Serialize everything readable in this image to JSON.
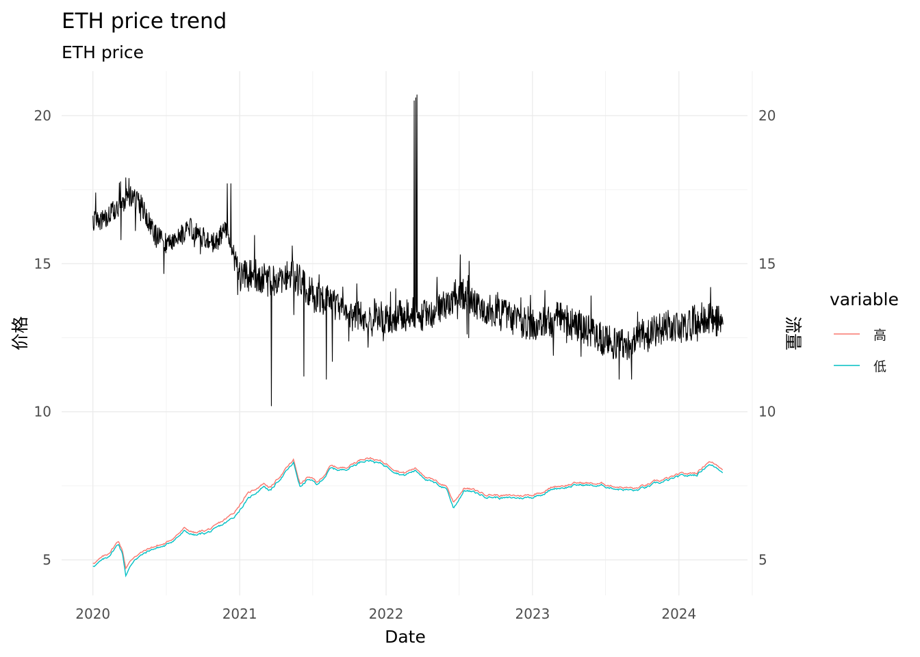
{
  "chart_data": {
    "type": "line",
    "title": "ETH price trend",
    "subtitle": "ETH price",
    "xlabel": "Date",
    "ylabel_left": "价格",
    "ylabel_right": "流量",
    "x_range": [
      "2019-10-15",
      "2024-06-20"
    ],
    "y_range": [
      3.8,
      21.5
    ],
    "x_ticks": [
      "2020-01-01",
      "2021-01-01",
      "2022-01-01",
      "2023-01-01",
      "2024-01-01"
    ],
    "x_tick_labels": [
      "2020",
      "2021",
      "2022",
      "2023",
      "2024"
    ],
    "y_ticks": [
      5,
      10,
      15,
      20
    ],
    "y_tick_labels": [
      "5",
      "10",
      "15",
      "20"
    ],
    "grid": true,
    "legend": {
      "title": "variable",
      "position": "right",
      "entries": [
        {
          "label": "高",
          "color": "#F8766D"
        },
        {
          "label": "低",
          "color": "#00BFC4"
        }
      ]
    },
    "series": [
      {
        "name": "高",
        "color": "#F8766D",
        "points": [
          [
            "2020-01-01",
            4.9
          ],
          [
            "2020-02-05",
            5.15
          ],
          [
            "2020-03-05",
            5.65
          ],
          [
            "2020-03-15",
            5.3
          ],
          [
            "2020-03-23",
            4.75
          ],
          [
            "2020-04-15",
            5.15
          ],
          [
            "2020-06-01",
            5.45
          ],
          [
            "2020-07-01",
            5.55
          ],
          [
            "2020-08-15",
            6.05
          ],
          [
            "2020-09-15",
            5.9
          ],
          [
            "2020-11-01",
            6.1
          ],
          [
            "2020-12-15",
            6.55
          ],
          [
            "2021-01-15",
            7.15
          ],
          [
            "2021-03-01",
            7.6
          ],
          [
            "2021-03-20",
            7.45
          ],
          [
            "2021-04-15",
            7.9
          ],
          [
            "2021-05-15",
            8.35
          ],
          [
            "2021-06-01",
            7.55
          ],
          [
            "2021-06-20",
            7.8
          ],
          [
            "2021-07-15",
            7.6
          ],
          [
            "2021-08-15",
            8.15
          ],
          [
            "2021-09-15",
            8.1
          ],
          [
            "2021-11-15",
            8.5
          ],
          [
            "2022-01-01",
            8.25
          ],
          [
            "2022-02-15",
            7.95
          ],
          [
            "2022-03-15",
            8.1
          ],
          [
            "2022-05-01",
            7.65
          ],
          [
            "2022-06-01",
            7.5
          ],
          [
            "2022-06-18",
            6.95
          ],
          [
            "2022-07-15",
            7.45
          ],
          [
            "2022-09-01",
            7.25
          ],
          [
            "2022-11-01",
            7.15
          ],
          [
            "2023-01-01",
            7.2
          ],
          [
            "2023-03-01",
            7.5
          ],
          [
            "2023-05-01",
            7.6
          ],
          [
            "2023-07-01",
            7.55
          ],
          [
            "2023-09-15",
            7.4
          ],
          [
            "2023-11-01",
            7.6
          ],
          [
            "2024-01-01",
            7.85
          ],
          [
            "2024-02-15",
            7.95
          ],
          [
            "2024-03-15",
            8.35
          ],
          [
            "2024-04-20",
            8.1
          ]
        ]
      },
      {
        "name": "低",
        "color": "#00BFC4",
        "points": [
          [
            "2020-01-01",
            4.8
          ],
          [
            "2020-02-05",
            5.05
          ],
          [
            "2020-03-05",
            5.55
          ],
          [
            "2020-03-15",
            5.2
          ],
          [
            "2020-03-23",
            4.5
          ],
          [
            "2020-04-15",
            5.05
          ],
          [
            "2020-06-01",
            5.38
          ],
          [
            "2020-07-01",
            5.48
          ],
          [
            "2020-08-15",
            5.95
          ],
          [
            "2020-09-15",
            5.82
          ],
          [
            "2020-11-01",
            6.0
          ],
          [
            "2020-12-15",
            6.4
          ],
          [
            "2021-01-15",
            6.95
          ],
          [
            "2021-03-01",
            7.5
          ],
          [
            "2021-03-20",
            7.35
          ],
          [
            "2021-04-15",
            7.8
          ],
          [
            "2021-05-15",
            8.25
          ],
          [
            "2021-06-01",
            7.45
          ],
          [
            "2021-06-20",
            7.72
          ],
          [
            "2021-07-15",
            7.52
          ],
          [
            "2021-08-15",
            8.07
          ],
          [
            "2021-09-15",
            8.03
          ],
          [
            "2021-11-15",
            8.42
          ],
          [
            "2022-01-01",
            8.17
          ],
          [
            "2022-02-15",
            7.87
          ],
          [
            "2022-03-15",
            8.02
          ],
          [
            "2022-05-01",
            7.57
          ],
          [
            "2022-06-01",
            7.42
          ],
          [
            "2022-06-18",
            6.75
          ],
          [
            "2022-07-15",
            7.37
          ],
          [
            "2022-09-01",
            7.17
          ],
          [
            "2022-11-01",
            7.07
          ],
          [
            "2023-01-01",
            7.12
          ],
          [
            "2023-03-01",
            7.43
          ],
          [
            "2023-05-01",
            7.53
          ],
          [
            "2023-07-01",
            7.48
          ],
          [
            "2023-09-15",
            7.33
          ],
          [
            "2023-11-01",
            7.53
          ],
          [
            "2024-01-01",
            7.78
          ],
          [
            "2024-02-15",
            7.88
          ],
          [
            "2024-03-15",
            8.25
          ],
          [
            "2024-04-20",
            8.0
          ]
        ]
      },
      {
        "name": "",
        "color": "#000000",
        "trend_points": [
          [
            "2020-01-01",
            16.4
          ],
          [
            "2020-02-01",
            16.5
          ],
          [
            "2020-03-01",
            16.9
          ],
          [
            "2020-04-01",
            17.3
          ],
          [
            "2020-05-01",
            17.0
          ],
          [
            "2020-06-01",
            16.0
          ],
          [
            "2020-07-01",
            15.7
          ],
          [
            "2020-08-01",
            15.9
          ],
          [
            "2020-09-01",
            16.2
          ],
          [
            "2020-10-01",
            15.9
          ],
          [
            "2020-11-01",
            15.7
          ],
          [
            "2020-12-01",
            16.2
          ],
          [
            "2021-01-01",
            14.6
          ],
          [
            "2021-02-01",
            14.6
          ],
          [
            "2021-03-01",
            14.4
          ],
          [
            "2021-04-01",
            14.4
          ],
          [
            "2021-05-01",
            14.7
          ],
          [
            "2021-06-01",
            14.4
          ],
          [
            "2021-07-01",
            13.9
          ],
          [
            "2021-08-01",
            13.8
          ],
          [
            "2021-09-01",
            13.6
          ],
          [
            "2021-10-01",
            13.3
          ],
          [
            "2021-11-01",
            13.2
          ],
          [
            "2021-12-01",
            13.3
          ],
          [
            "2022-01-01",
            13.1
          ],
          [
            "2022-02-01",
            13.2
          ],
          [
            "2022-03-01",
            13.3
          ],
          [
            "2022-04-01",
            13.2
          ],
          [
            "2022-05-01",
            13.4
          ],
          [
            "2022-06-01",
            13.6
          ],
          [
            "2022-07-01",
            14.1
          ],
          [
            "2022-08-01",
            13.8
          ],
          [
            "2022-09-01",
            13.5
          ],
          [
            "2022-10-01",
            13.3
          ],
          [
            "2022-11-01",
            13.2
          ],
          [
            "2022-12-01",
            13.0
          ],
          [
            "2023-01-01",
            12.9
          ],
          [
            "2023-02-01",
            13.0
          ],
          [
            "2023-03-01",
            13.2
          ],
          [
            "2023-04-01",
            13.0
          ],
          [
            "2023-05-01",
            12.9
          ],
          [
            "2023-06-01",
            12.6
          ],
          [
            "2023-07-01",
            12.4
          ],
          [
            "2023-08-01",
            12.3
          ],
          [
            "2023-09-01",
            12.3
          ],
          [
            "2023-10-01",
            12.6
          ],
          [
            "2023-11-01",
            12.7
          ],
          [
            "2023-12-01",
            12.9
          ],
          [
            "2024-01-01",
            12.8
          ],
          [
            "2024-02-01",
            13.0
          ],
          [
            "2024-03-01",
            13.2
          ],
          [
            "2024-04-01",
            13.1
          ],
          [
            "2024-04-20",
            13.0
          ]
        ],
        "spikes": [
          [
            "2021-03-21",
            10.2
          ],
          [
            "2021-06-10",
            11.2
          ],
          [
            "2021-08-05",
            11.1
          ],
          [
            "2021-08-20",
            11.7
          ],
          [
            "2022-03-12",
            20.5
          ],
          [
            "2022-03-16",
            20.6
          ],
          [
            "2022-03-19",
            20.7
          ],
          [
            "2020-03-23",
            17.9
          ],
          [
            "2020-12-01",
            17.7
          ],
          [
            "2020-12-10",
            17.7
          ],
          [
            "2021-05-12",
            15.6
          ],
          [
            "2022-07-05",
            15.3
          ],
          [
            "2023-08-05",
            11.1
          ],
          [
            "2023-09-05",
            11.1
          ],
          [
            "2024-03-20",
            14.2
          ]
        ]
      }
    ]
  }
}
